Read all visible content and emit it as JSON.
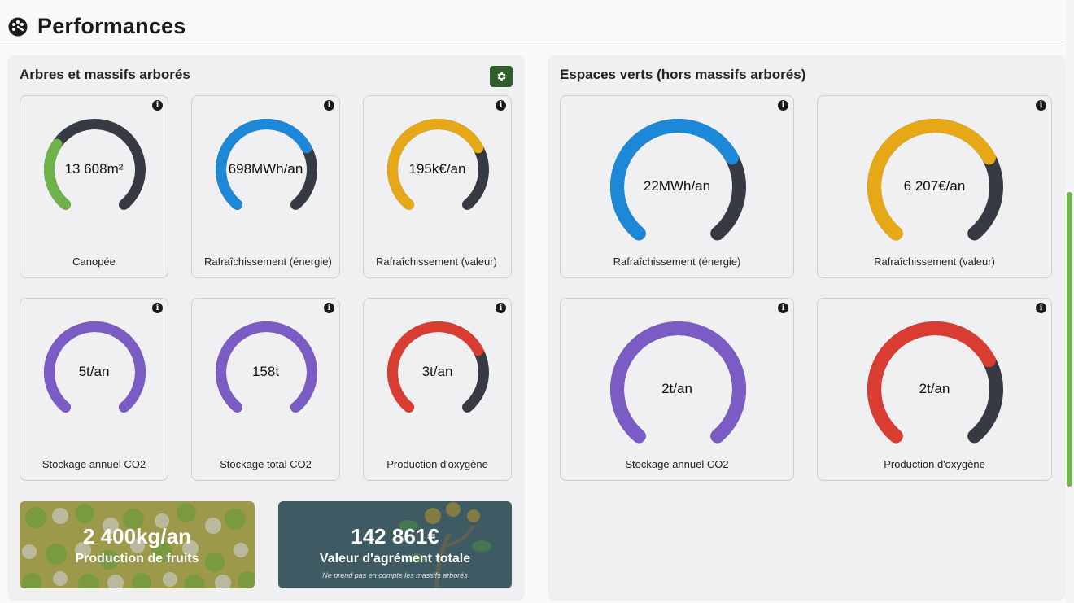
{
  "page": {
    "title": "Performances",
    "title_icon": "palette-gauge-icon"
  },
  "left_panel": {
    "title": "Arbres et massifs arborés",
    "settings_icon": "gear-icon",
    "cards": [
      {
        "value": "13 608m²",
        "label": "Canopée",
        "color": "#6db34a",
        "fill": 0.3
      },
      {
        "value": "698MWh/an",
        "label": "Rafraîchissement (énergie)",
        "color": "#1e88d8",
        "fill": 0.72
      },
      {
        "value": "195k€/an",
        "label": "Rafraîchissement (valeur)",
        "color": "#e6a817",
        "fill": 0.72
      },
      {
        "value": "5t/an",
        "label": "Stockage annuel CO2",
        "color": "#7b5cc4",
        "fill": 1.0
      },
      {
        "value": "158t",
        "label": "Stockage total CO2",
        "color": "#7b5cc4",
        "fill": 1.0
      },
      {
        "value": "3t/an",
        "label": "Production d'oxygène",
        "color": "#d93c30",
        "fill": 0.72
      }
    ],
    "banners": [
      {
        "value": "2 400kg/an",
        "label": "Production de fruits",
        "background": "#9c9a4a"
      },
      {
        "value": "142 861€",
        "label": "Valeur d'agrément totale",
        "note": "Ne prend pas en compte les massifs arborés",
        "background": "#3e5a63"
      }
    ]
  },
  "right_panel": {
    "title": "Espaces verts (hors massifs arborés)",
    "cards": [
      {
        "value": "22MWh/an",
        "label": "Rafraîchissement (énergie)",
        "color": "#1e88d8",
        "fill": 0.72
      },
      {
        "value": "6 207€/an",
        "label": "Rafraîchissement (valeur)",
        "color": "#e6a817",
        "fill": 0.72
      },
      {
        "value": "2t/an",
        "label": "Stockage annuel CO2",
        "color": "#7b5cc4",
        "fill": 1.0
      },
      {
        "value": "2t/an",
        "label": "Production d'oxygène",
        "color": "#d93c30",
        "fill": 0.72
      }
    ]
  },
  "colors": {
    "gauge_track": "#363b43",
    "accent_green": "#2f5e2a",
    "scroll_thumb": "#6fb74b"
  }
}
